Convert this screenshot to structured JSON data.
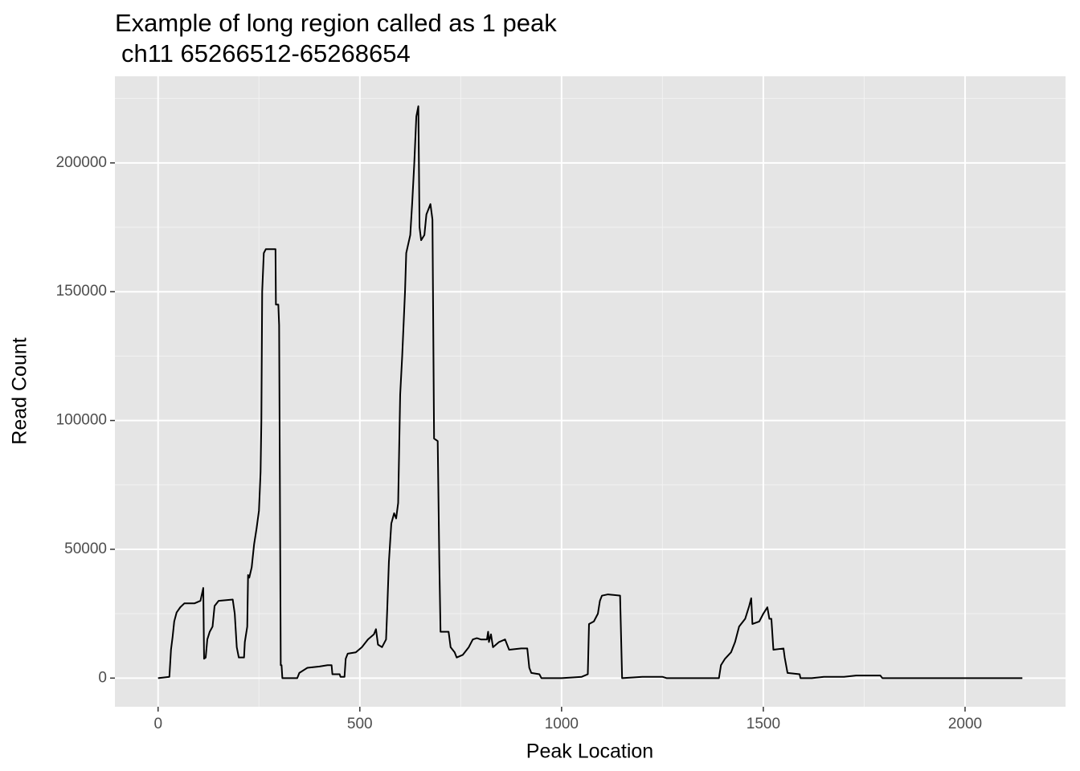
{
  "chart_data": {
    "type": "line",
    "title": "Example of long region called as 1 peak",
    "subtitle": "ch11 65266512-65268654",
    "x_label": "Peak Location",
    "y_label": "Read Count",
    "xlim": [
      -107,
      2249
    ],
    "xticks": [
      0,
      500,
      1000,
      1500,
      2000
    ],
    "ylim": [
      -11125,
      233625
    ],
    "yticks": [
      0,
      50000,
      100000,
      150000,
      200000
    ],
    "grid": true,
    "minor_grid": true,
    "color": "#000000",
    "x": [
      0,
      28,
      32,
      36,
      40,
      46,
      55,
      65,
      90,
      105,
      112,
      114,
      118,
      122,
      128,
      135,
      140,
      150,
      185,
      190,
      195,
      200,
      213,
      215,
      221,
      223,
      226,
      232,
      238,
      244,
      250,
      254,
      256,
      258,
      262,
      267,
      291,
      292,
      298,
      300,
      304,
      306,
      308,
      345,
      350,
      360,
      370,
      400,
      420,
      430,
      432,
      450,
      452,
      462,
      465,
      470,
      490,
      505,
      520,
      535,
      540,
      545,
      555,
      565,
      568,
      572,
      578,
      585,
      590,
      595,
      600,
      605,
      612,
      615,
      625,
      630,
      635,
      640,
      645,
      648,
      652,
      660,
      665,
      675,
      680,
      684,
      693,
      697,
      700,
      720,
      725,
      735,
      740,
      755,
      770,
      780,
      790,
      800,
      815,
      818,
      820,
      825,
      830,
      845,
      860,
      870,
      900,
      915,
      920,
      925,
      945,
      950,
      1000,
      1050,
      1065,
      1068,
      1080,
      1090,
      1095,
      1100,
      1115,
      1145,
      1150,
      1200,
      1250,
      1260,
      1390,
      1395,
      1405,
      1420,
      1430,
      1440,
      1455,
      1465,
      1470,
      1473,
      1490,
      1500,
      1510,
      1515,
      1520,
      1525,
      1550,
      1553,
      1560,
      1590,
      1592,
      1620,
      1650,
      1700,
      1730,
      1790,
      1795,
      2142
    ],
    "values": [
      0,
      500,
      11000,
      16000,
      22000,
      25500,
      27500,
      29000,
      29000,
      30000,
      35000,
      7500,
      8000,
      15000,
      18000,
      20000,
      28000,
      30000,
      30500,
      25000,
      12000,
      8000,
      8000,
      14000,
      20000,
      40000,
      39000,
      43000,
      52000,
      58000,
      65000,
      80000,
      100000,
      150000,
      165000,
      166500,
      166500,
      145000,
      145000,
      137000,
      5000,
      5000,
      0,
      0,
      2000,
      3000,
      4000,
      4500,
      5000,
      5000,
      1500,
      1500,
      500,
      500,
      7500,
      9500,
      10000,
      12000,
      15000,
      17000,
      19000,
      13000,
      12000,
      15000,
      27000,
      45000,
      60000,
      64000,
      62000,
      68000,
      110000,
      125000,
      150000,
      165000,
      172000,
      185000,
      200000,
      218000,
      222000,
      175000,
      170000,
      172000,
      180000,
      184000,
      178000,
      93000,
      92000,
      45000,
      18000,
      18000,
      12000,
      10000,
      8000,
      9000,
      12000,
      15000,
      15500,
      15000,
      15000,
      18000,
      14000,
      17000,
      12000,
      14000,
      15000,
      11000,
      11500,
      11500,
      4000,
      2000,
      1500,
      0,
      0,
      500,
      1500,
      21000,
      22000,
      25000,
      30000,
      32000,
      32500,
      32000,
      0,
      500,
      500,
      0,
      0,
      5000,
      7500,
      10000,
      14000,
      20000,
      23000,
      28000,
      31000,
      21000,
      22000,
      25000,
      27500,
      23000,
      23000,
      11000,
      11500,
      8000,
      2000,
      1500,
      0,
      0,
      500,
      500,
      1000,
      1000,
      0,
      0
    ]
  }
}
